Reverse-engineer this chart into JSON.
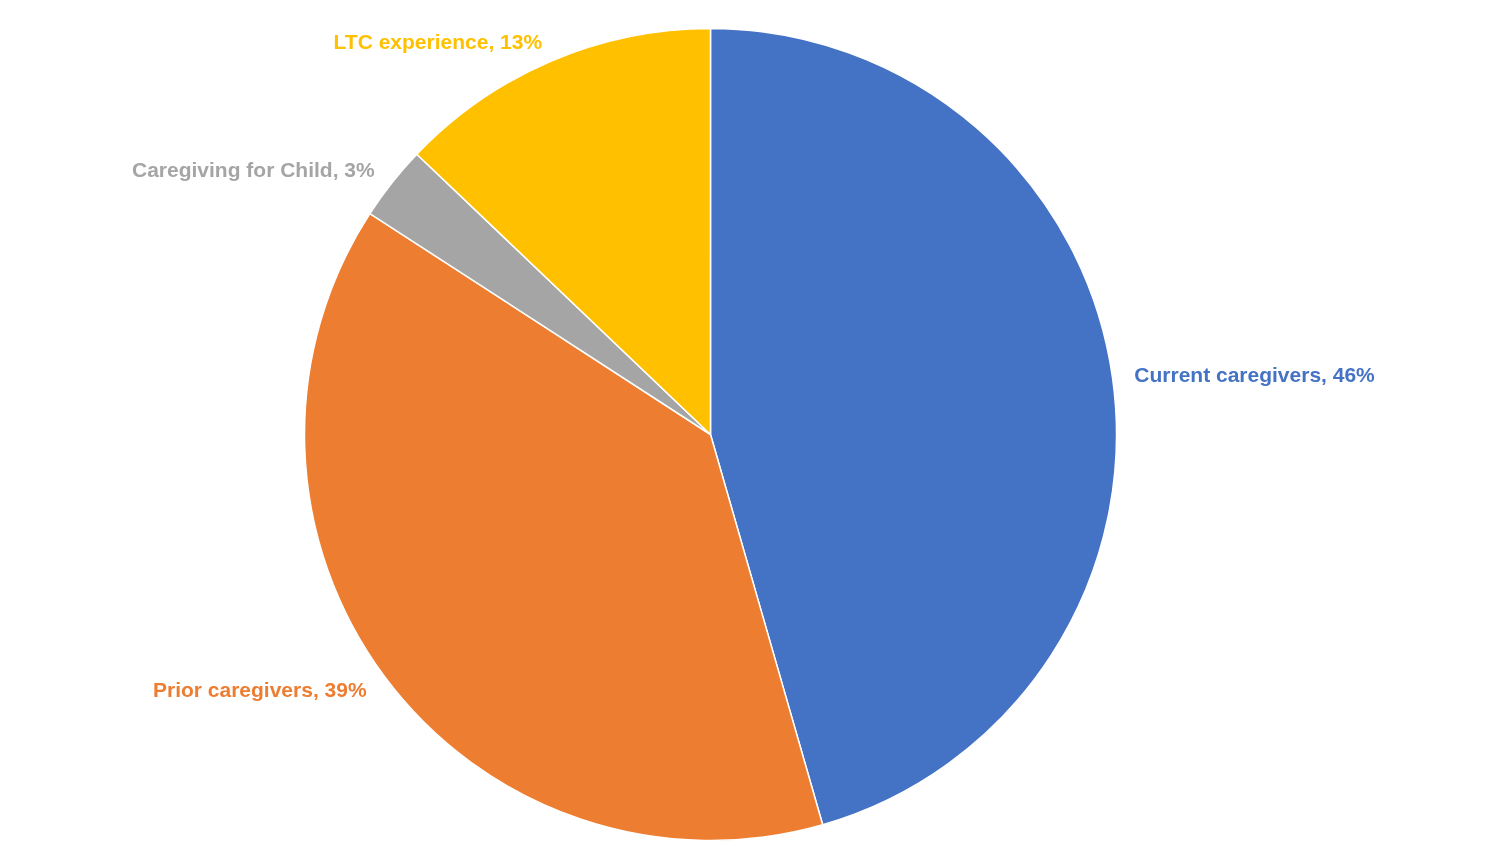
{
  "chart_data": {
    "type": "pie",
    "categories": [
      "Current caregivers",
      "Prior caregivers",
      "Caregiving for Child",
      "LTC experience"
    ],
    "values": [
      46,
      39,
      3,
      13
    ],
    "value_labels": [
      "46%",
      "39%",
      "3%",
      "13%"
    ],
    "colors": [
      "#4472c4",
      "#ed7d31",
      "#a5a5a5",
      "#ffc000"
    ],
    "legend": false
  }
}
